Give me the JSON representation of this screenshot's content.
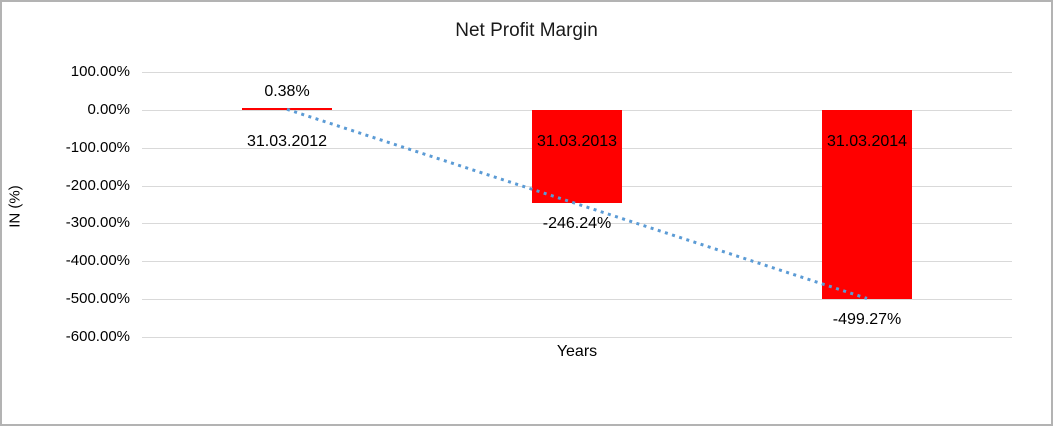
{
  "chart_data": {
    "type": "bar",
    "title": "Net Profit Margin",
    "xlabel": "Years",
    "ylabel": "IN (%)",
    "categories": [
      "31.03.2012",
      "31.03.2013",
      "31.03.2014"
    ],
    "values": [
      0.38,
      -246.24,
      -499.27
    ],
    "data_labels": [
      "0.38%",
      "-246.24%",
      "-499.27%"
    ],
    "ylim": [
      -600,
      100
    ],
    "ytick_values": [
      100,
      0,
      -100,
      -200,
      -300,
      -400,
      -500,
      -600
    ],
    "ytick_labels": [
      "100.00%",
      "0.00%",
      "-100.00%",
      "-200.00%",
      "-300.00%",
      "-400.00%",
      "-500.00%",
      "-600.00%"
    ],
    "grid": true,
    "legend": "none",
    "bar_color": "#ff0000",
    "gridline_color": "#d9d9d9",
    "trendline": {
      "type": "linear",
      "style": "dotted",
      "color": "#5b9bd5",
      "start_value": 1.45,
      "end_value": -498.2
    }
  }
}
